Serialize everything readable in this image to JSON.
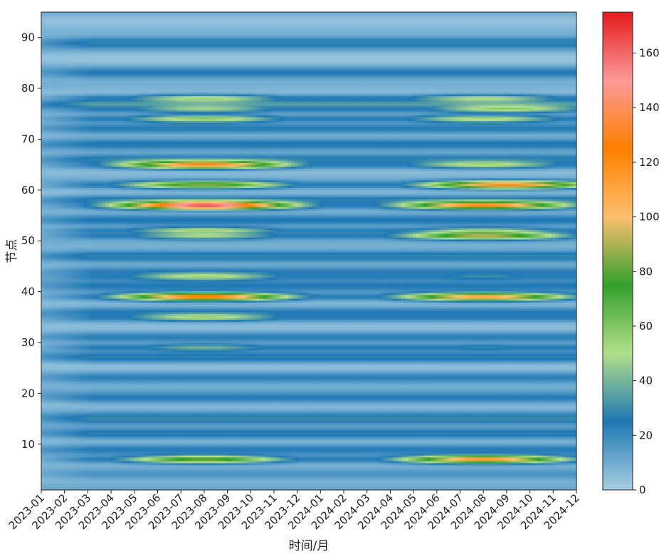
{
  "chart_data": {
    "type": "heatmap",
    "title": "",
    "xlabel": "时间/月",
    "ylabel": "节点",
    "x_categories": [
      "2023-01",
      "2023-02",
      "2023-03",
      "2023-04",
      "2023-05",
      "2023-06",
      "2023-07",
      "2023-08",
      "2023-09",
      "2023-10",
      "2023-11",
      "2023-12",
      "2024-01",
      "2024-02",
      "2024-03",
      "2024-04",
      "2024-05",
      "2024-06",
      "2024-07",
      "2024-08",
      "2024-09",
      "2024-10",
      "2024-11",
      "2024-12"
    ],
    "y_range": [
      1,
      95
    ],
    "y_ticks": [
      10,
      20,
      30,
      40,
      50,
      60,
      70,
      80,
      90
    ],
    "colorbar": {
      "range": [
        0,
        175
      ],
      "ticks": [
        0,
        20,
        40,
        60,
        80,
        100,
        120,
        140,
        160
      ],
      "colormap": [
        {
          "value": 0,
          "color": "#a6cee3"
        },
        {
          "value": 25,
          "color": "#1f78b4"
        },
        {
          "value": 50,
          "color": "#b2df8a"
        },
        {
          "value": 75,
          "color": "#33a02c"
        },
        {
          "value": 100,
          "color": "#fdbf6f"
        },
        {
          "value": 125,
          "color": "#ff7f00"
        },
        {
          "value": 150,
          "color": "#fb9a99"
        },
        {
          "value": 175,
          "color": "#e31a1c"
        }
      ]
    },
    "background_bands": [
      {
        "node": 89,
        "value": 20
      },
      {
        "node": 83,
        "value": 16
      },
      {
        "node": 77,
        "value": 26
      },
      {
        "node": 72,
        "value": 18
      },
      {
        "node": 69,
        "value": 15
      },
      {
        "node": 66,
        "value": 22
      },
      {
        "node": 58,
        "value": 20
      },
      {
        "node": 54,
        "value": 16
      },
      {
        "node": 47,
        "value": 20
      },
      {
        "node": 44,
        "value": 18
      },
      {
        "node": 41,
        "value": 18
      },
      {
        "node": 36,
        "value": 16
      },
      {
        "node": 31,
        "value": 16
      },
      {
        "node": 27,
        "value": 18
      },
      {
        "node": 23,
        "value": 15
      },
      {
        "node": 19,
        "value": 18
      },
      {
        "node": 15,
        "value": 22
      },
      {
        "node": 12,
        "value": 20
      },
      {
        "node": 9,
        "value": 14
      },
      {
        "node": 4,
        "value": 12
      }
    ],
    "hot_bands": [
      {
        "node": 78,
        "peaks": [
          {
            "month": 7,
            "value": 55
          },
          {
            "month": 19,
            "value": 52
          }
        ]
      },
      {
        "node": 76,
        "peaks": [
          {
            "month": 7,
            "value": 48
          },
          {
            "month": 20,
            "value": 58
          }
        ]
      },
      {
        "node": 74,
        "peaks": [
          {
            "month": 7,
            "value": 60
          },
          {
            "month": 19,
            "value": 55
          }
        ]
      },
      {
        "node": 65,
        "peaks": [
          {
            "month": 7,
            "value": 125
          },
          {
            "month": 19,
            "value": 55
          }
        ]
      },
      {
        "node": 61,
        "peaks": [
          {
            "month": 7,
            "value": 85
          },
          {
            "month": 20,
            "value": 120
          }
        ]
      },
      {
        "node": 57,
        "peaks": [
          {
            "month": 7,
            "value": 170
          },
          {
            "month": 19,
            "value": 125
          }
        ]
      },
      {
        "node": 52,
        "peaks": [
          {
            "month": 7,
            "value": 55
          },
          {
            "month": 19,
            "value": 45
          }
        ]
      },
      {
        "node": 51,
        "peaks": [
          {
            "month": 7,
            "value": 50
          },
          {
            "month": 19,
            "value": 95
          }
        ]
      },
      {
        "node": 43,
        "peaks": [
          {
            "month": 7,
            "value": 55
          },
          {
            "month": 19,
            "value": 30
          }
        ]
      },
      {
        "node": 39,
        "peaks": [
          {
            "month": 7,
            "value": 130
          },
          {
            "month": 19,
            "value": 115
          }
        ]
      },
      {
        "node": 35,
        "peaks": [
          {
            "month": 7,
            "value": 55
          },
          {
            "month": 19,
            "value": 25
          }
        ]
      },
      {
        "node": 29,
        "peaks": [
          {
            "month": 7,
            "value": 40
          },
          {
            "month": 19,
            "value": 28
          }
        ]
      },
      {
        "node": 7,
        "peaks": [
          {
            "month": 7,
            "value": 85
          },
          {
            "month": 19,
            "value": 120
          }
        ]
      }
    ]
  }
}
